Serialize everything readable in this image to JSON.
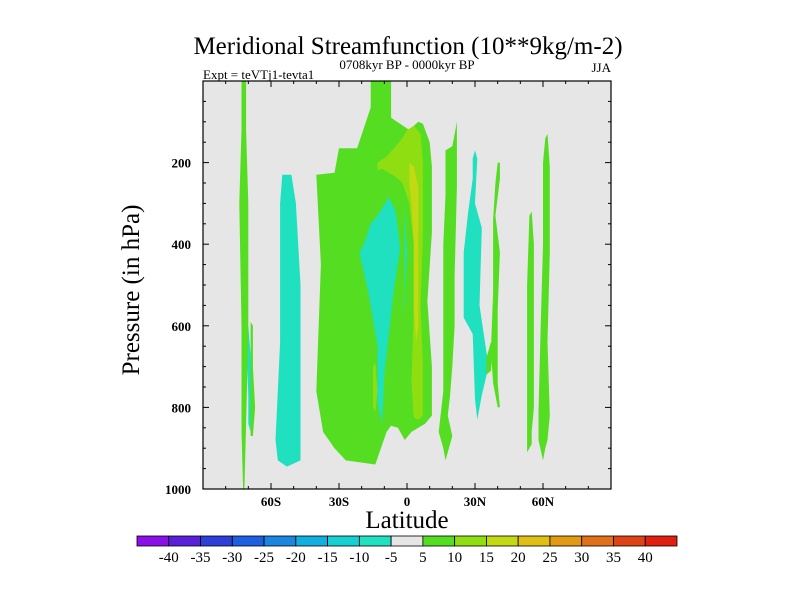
{
  "chart_data": {
    "type": "heatmap",
    "title": "Meridional Streamfunction (10**9kg/m-2)",
    "subtitle_left": "Expt = teVTj1-tevta1",
    "subtitle_center": "0708kyr BP - 0000kyr BP",
    "subtitle_right": "JJA",
    "xlabel": "Latitude",
    "ylabel": "Pressure (in hPa)",
    "xlim": [
      -90,
      90
    ],
    "ylim": [
      1000,
      0
    ],
    "y_reversed": true,
    "x_ticks": [
      {
        "value": -60,
        "label": "60S"
      },
      {
        "value": -30,
        "label": "30S"
      },
      {
        "value": 0,
        "label": "0"
      },
      {
        "value": 30,
        "label": "30N"
      },
      {
        "value": 60,
        "label": "60N"
      }
    ],
    "y_ticks": [
      {
        "value": 200,
        "label": "200"
      },
      {
        "value": 400,
        "label": "400"
      },
      {
        "value": 600,
        "label": "600"
      },
      {
        "value": 800,
        "label": "800"
      },
      {
        "value": 1000,
        "label": "1000"
      }
    ],
    "background_color": "#e6e6e6",
    "colorbar": {
      "labels": [
        "-40",
        "-35",
        "-30",
        "-25",
        "-20",
        "-15",
        "-10",
        "-5",
        "5",
        "10",
        "15",
        "20",
        "25",
        "30",
        "35",
        "40"
      ],
      "colors": [
        "#8a10e8",
        "#5a1fd8",
        "#2d3fd6",
        "#1e5fe0",
        "#1a86e0",
        "#12aee0",
        "#18cfd2",
        "#1fe0bf",
        "#e6e6e6",
        "#55dd22",
        "#8ede12",
        "#c3d914",
        "#e0c015",
        "#e09a14",
        "#e0701a",
        "#dd4314",
        "#e02010"
      ]
    },
    "regions": [
      {
        "level": -5,
        "color": "#1fe0bf",
        "points": [
          [
            -71,
            620
          ],
          [
            -70,
            770
          ],
          [
            -70,
            840
          ],
          [
            -69,
            860
          ],
          [
            -68,
            740
          ],
          [
            -70,
            600
          ]
        ]
      },
      {
        "level": 5,
        "color": "#55dd22",
        "points": [
          [
            -73,
            0
          ],
          [
            -71,
            0
          ],
          [
            -71,
            120
          ],
          [
            -70,
            300
          ],
          [
            -70,
            620
          ],
          [
            -71,
            840
          ],
          [
            -72,
            1060
          ],
          [
            -73,
            860
          ],
          [
            -73,
            600
          ],
          [
            -74,
            300
          ],
          [
            -73,
            120
          ]
        ]
      },
      {
        "level": 5,
        "color": "#55dd22",
        "points": [
          [
            -69,
            590
          ],
          [
            -68,
            600
          ],
          [
            -68,
            700
          ],
          [
            -67,
            800
          ],
          [
            -68,
            870
          ],
          [
            -69,
            870
          ],
          [
            -69,
            750
          ]
        ]
      },
      {
        "level": -5,
        "color": "#1fe0bf",
        "points": [
          [
            -55,
            230
          ],
          [
            -51,
            230
          ],
          [
            -49,
            300
          ],
          [
            -47,
            500
          ],
          [
            -47,
            800
          ],
          [
            -47,
            930
          ],
          [
            -53,
            945
          ],
          [
            -57,
            930
          ],
          [
            -58,
            880
          ],
          [
            -56,
            640
          ],
          [
            -56,
            300
          ]
        ]
      },
      {
        "level": 5,
        "color": "#55dd22",
        "points": [
          [
            -40,
            230
          ],
          [
            -32,
            225
          ],
          [
            -30,
            165
          ],
          [
            -22,
            165
          ],
          [
            -16,
            65
          ],
          [
            -16,
            0
          ],
          [
            -7,
            0
          ],
          [
            -7,
            90
          ],
          [
            1,
            120
          ],
          [
            5,
            100
          ],
          [
            7,
            105
          ],
          [
            10,
            150
          ],
          [
            11,
            210
          ],
          [
            11,
            370
          ],
          [
            9,
            540
          ],
          [
            11,
            700
          ],
          [
            11,
            820
          ],
          [
            8,
            840
          ],
          [
            5,
            850
          ],
          [
            2,
            860
          ],
          [
            -1,
            880
          ],
          [
            -4,
            850
          ],
          [
            -7,
            845
          ],
          [
            -9,
            860
          ],
          [
            -14,
            940
          ],
          [
            -27,
            930
          ],
          [
            -32,
            900
          ],
          [
            -37,
            860
          ],
          [
            -40,
            760
          ],
          [
            -38,
            450
          ]
        ]
      },
      {
        "level": -5,
        "color": "#1fe0bf",
        "points": [
          [
            -13,
            330
          ],
          [
            -8,
            285
          ],
          [
            -5,
            320
          ],
          [
            -3,
            410
          ],
          [
            -6,
            520
          ],
          [
            -8,
            620
          ],
          [
            -10,
            720
          ],
          [
            -11,
            840
          ],
          [
            -13,
            790
          ],
          [
            -13,
            650
          ],
          [
            -17,
            520
          ],
          [
            -21,
            420
          ],
          [
            -19,
            400
          ],
          [
            -16,
            350
          ]
        ]
      },
      {
        "level": 10,
        "color": "#8ede12",
        "points": [
          [
            0,
            120
          ],
          [
            3,
            110
          ],
          [
            6,
            130
          ],
          [
            7,
            200
          ],
          [
            7,
            380
          ],
          [
            6,
            550
          ],
          [
            7,
            700
          ],
          [
            7,
            820
          ],
          [
            5,
            830
          ],
          [
            3,
            825
          ],
          [
            2,
            740
          ],
          [
            3,
            550
          ],
          [
            3,
            400
          ],
          [
            1,
            300
          ],
          [
            -2,
            250
          ],
          [
            -5,
            235
          ],
          [
            -11,
            215
          ],
          [
            -13,
            220
          ],
          [
            -13,
            200
          ],
          [
            -9,
            185
          ],
          [
            -5,
            160
          ],
          [
            -2,
            140
          ]
        ]
      },
      {
        "level": 10,
        "color": "#8ede12",
        "points": [
          [
            -15,
            700
          ],
          [
            -14,
            690
          ],
          [
            -13,
            760
          ],
          [
            -14,
            810
          ],
          [
            -15,
            800
          ]
        ]
      },
      {
        "level": 15,
        "color": "#c3d914",
        "points": [
          [
            1,
            200
          ],
          [
            3,
            210
          ],
          [
            5,
            260
          ],
          [
            5,
            400
          ],
          [
            5,
            600
          ],
          [
            4,
            640
          ],
          [
            3,
            560
          ],
          [
            3,
            400
          ],
          [
            2,
            300
          ],
          [
            1,
            250
          ]
        ]
      },
      {
        "level": -5,
        "color": "#1fe0bf",
        "points": [
          [
            -1,
            300
          ],
          [
            -1,
            520
          ],
          [
            -2,
            570
          ],
          [
            -1,
            540
          ],
          [
            0,
            420
          ]
        ]
      },
      {
        "level": 5,
        "color": "#55dd22",
        "points": [
          [
            17,
            170
          ],
          [
            20,
            160
          ],
          [
            22,
            100
          ],
          [
            22,
            260
          ],
          [
            21,
            480
          ],
          [
            21,
            600
          ],
          [
            20,
            700
          ],
          [
            19,
            770
          ],
          [
            18,
            820
          ],
          [
            20,
            870
          ],
          [
            17,
            930
          ],
          [
            16,
            900
          ],
          [
            14,
            860
          ],
          [
            16,
            760
          ],
          [
            16,
            600
          ],
          [
            16,
            400
          ],
          [
            17,
            280
          ]
        ]
      },
      {
        "level": -5,
        "color": "#1fe0bf",
        "points": [
          [
            29,
            190
          ],
          [
            30,
            170
          ],
          [
            31,
            190
          ],
          [
            30,
            300
          ],
          [
            33,
            360
          ],
          [
            32,
            550
          ],
          [
            36,
            700
          ],
          [
            33,
            770
          ],
          [
            31,
            830
          ],
          [
            30,
            780
          ],
          [
            29,
            620
          ],
          [
            25,
            580
          ],
          [
            25,
            420
          ],
          [
            27,
            320
          ],
          [
            29,
            240
          ]
        ]
      },
      {
        "level": 5,
        "color": "#55dd22",
        "points": [
          [
            37,
            640
          ],
          [
            38,
            650
          ],
          [
            37,
            710
          ],
          [
            35,
            720
          ],
          [
            35,
            680
          ]
        ]
      },
      {
        "level": 5,
        "color": "#55dd22",
        "points": [
          [
            40,
            200
          ],
          [
            41,
            200
          ],
          [
            41,
            240
          ],
          [
            39,
            330
          ],
          [
            41,
            420
          ],
          [
            40,
            560
          ],
          [
            40,
            740
          ],
          [
            41,
            800
          ],
          [
            40,
            800
          ],
          [
            38,
            740
          ],
          [
            37,
            660
          ],
          [
            38,
            520
          ],
          [
            38,
            340
          ],
          [
            39,
            250
          ]
        ]
      },
      {
        "level": 5,
        "color": "#55dd22",
        "points": [
          [
            54,
            330
          ],
          [
            55,
            320
          ],
          [
            56,
            400
          ],
          [
            56,
            600
          ],
          [
            56,
            800
          ],
          [
            55,
            860
          ],
          [
            55,
            890
          ],
          [
            53,
            910
          ],
          [
            53,
            860
          ],
          [
            53,
            700
          ],
          [
            53,
            500
          ]
        ]
      },
      {
        "level": 5,
        "color": "#55dd22",
        "points": [
          [
            61,
            140
          ],
          [
            62,
            130
          ],
          [
            63,
            210
          ],
          [
            63,
            420
          ],
          [
            62,
            640
          ],
          [
            63,
            820
          ],
          [
            62,
            880
          ],
          [
            61,
            900
          ],
          [
            60,
            930
          ],
          [
            58,
            880
          ],
          [
            58,
            810
          ],
          [
            59,
            600
          ],
          [
            60,
            400
          ],
          [
            60,
            200
          ]
        ]
      }
    ]
  }
}
